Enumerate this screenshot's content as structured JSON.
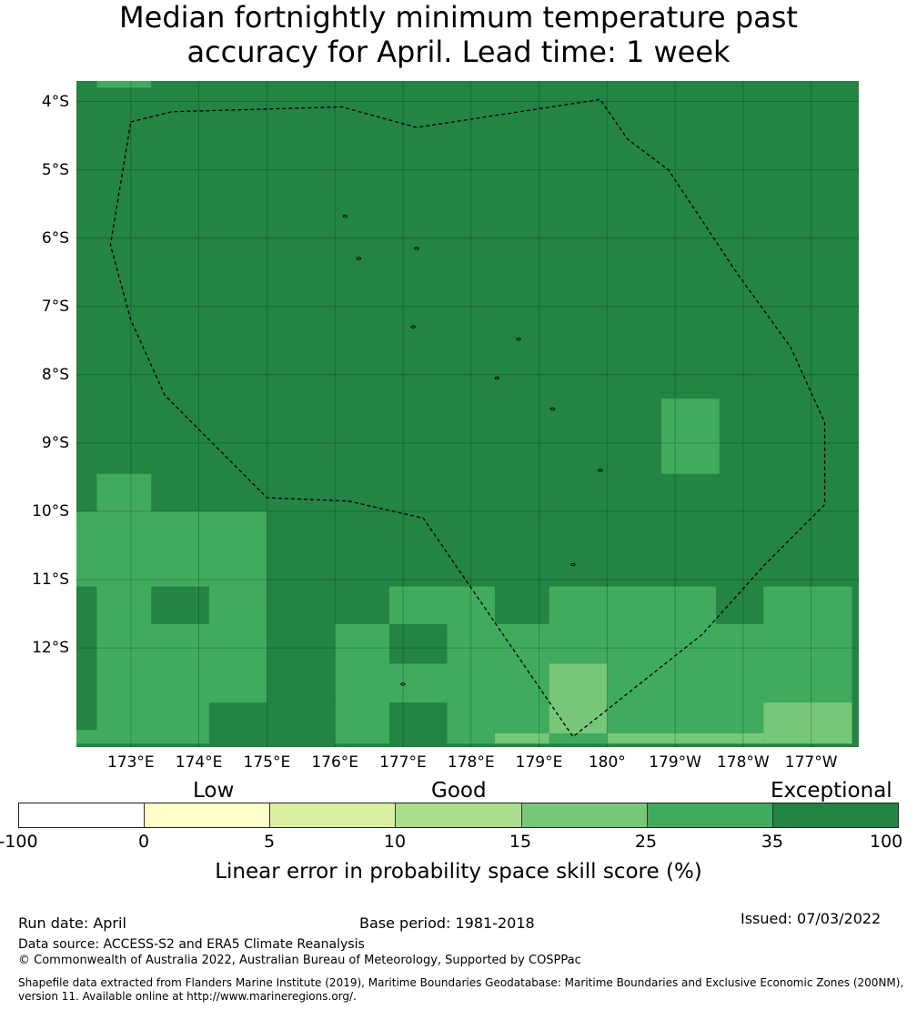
{
  "title_line1": "Median fortnightly minimum temperature past",
  "title_line2": "accuracy for April. Lead time: 1 week",
  "lat_labels": [
    "4°S",
    "5°S",
    "6°S",
    "7°S",
    "8°S",
    "9°S",
    "10°S",
    "11°S",
    "12°S"
  ],
  "lon_labels": [
    "173°E",
    "174°E",
    "175°E",
    "176°E",
    "177°E",
    "178°E",
    "179°E",
    "180°",
    "179°W",
    "178°W",
    "177°W"
  ],
  "categories": [
    "Low",
    "Good",
    "Exceptional"
  ],
  "colorbar": {
    "ticks": [
      "-100",
      "0",
      "5",
      "10",
      "15",
      "25",
      "35",
      "100"
    ],
    "colors": [
      "#ffffff",
      "#ffffcc",
      "#d9f0a3",
      "#addd8e",
      "#78c679",
      "#41ab5d",
      "#238443"
    ],
    "label": "Linear error in probability space skill score (%)"
  },
  "footer": {
    "run_date": "Run date: April",
    "base_period": "Base period: 1981-2018",
    "issued": "Issued: 07/03/2022",
    "data_source": "Data source: ACCESS-S2 and ERA5 Climate Reanalysis",
    "copyright": "© Commonwealth of Australia 2022, Australian Bureau of Meteorology, Supported by COSPPac",
    "shapefile_line1": "Shapefile data extracted from Flanders Marine Institute (2019), Maritime Boundaries Geodatabase: Maritime Boundaries and Exclusive Economic Zones (200NM),",
    "shapefile_line2": "version 11. Available online at http://www.marineregions.org/."
  },
  "map": {
    "extent": {
      "lon_min": 172.2,
      "lon_max": 183.7,
      "lat_max": -3.7,
      "lat_min": -13.45
    },
    "default_level": 6,
    "patches": [
      {
        "lon": [
          172.5,
          173.3
        ],
        "lat": [
          -3.8,
          -3.7
        ],
        "level": 5
      },
      {
        "lon": [
          172.2,
          175.0
        ],
        "lat": [
          -13.4,
          -10.0
        ],
        "level": 5
      },
      {
        "lon": [
          172.5,
          173.3
        ],
        "lat": [
          -10.0,
          -9.45
        ],
        "level": 5
      },
      {
        "lon": [
          173.3,
          174.15
        ],
        "lat": [
          -11.65,
          -11.1
        ],
        "level": 6
      },
      {
        "lon": [
          172.2,
          172.5
        ],
        "lat": [
          -13.2,
          -11.1
        ],
        "level": 6
      },
      {
        "lon": [
          174.15,
          175.0
        ],
        "lat": [
          -13.4,
          -12.8
        ],
        "level": 6
      },
      {
        "lon": [
          175.0,
          176.0
        ],
        "lat": [
          -13.4,
          -12.8
        ],
        "level": 6
      },
      {
        "lon": [
          176.0,
          176.8
        ],
        "lat": [
          -13.4,
          -11.65
        ],
        "level": 5
      },
      {
        "lon": [
          176.8,
          178.35
        ],
        "lat": [
          -11.65,
          -11.1
        ],
        "level": 5
      },
      {
        "lon": [
          176.8,
          177.65
        ],
        "lat": [
          -12.23,
          -11.65
        ],
        "level": 6
      },
      {
        "lon": [
          177.65,
          178.35
        ],
        "lat": [
          -12.8,
          -11.65
        ],
        "level": 5
      },
      {
        "lon": [
          176.8,
          177.65
        ],
        "lat": [
          -12.8,
          -12.23
        ],
        "level": 5
      },
      {
        "lon": [
          176.8,
          177.65
        ],
        "lat": [
          -13.4,
          -12.8
        ],
        "level": 6
      },
      {
        "lon": [
          177.65,
          178.35
        ],
        "lat": [
          -13.4,
          -12.8
        ],
        "level": 5
      },
      {
        "lon": [
          178.35,
          179.15
        ],
        "lat": [
          -12.8,
          -11.65
        ],
        "level": 5
      },
      {
        "lon": [
          178.35,
          179.15
        ],
        "lat": [
          -13.4,
          -12.8
        ],
        "level": 5
      },
      {
        "lon": [
          178.35,
          179.15
        ],
        "lat": [
          -13.4,
          -13.25
        ],
        "level": 4
      },
      {
        "lon": [
          179.15,
          182.3
        ],
        "lat": [
          -13.4,
          -11.1
        ],
        "level": 5
      },
      {
        "lon": [
          179.15,
          180.0
        ],
        "lat": [
          -13.25,
          -12.23
        ],
        "level": 4
      },
      {
        "lon": [
          180.0,
          182.3
        ],
        "lat": [
          -13.4,
          -13.25
        ],
        "level": 4
      },
      {
        "lon": [
          181.6,
          182.3
        ],
        "lat": [
          -11.65,
          -11.1
        ],
        "level": 6
      },
      {
        "lon": [
          182.3,
          183.6
        ],
        "lat": [
          -13.4,
          -11.1
        ],
        "level": 5
      },
      {
        "lon": [
          182.3,
          183.6
        ],
        "lat": [
          -13.4,
          -12.8
        ],
        "level": 4
      },
      {
        "lon": [
          180.8,
          181.65
        ],
        "lat": [
          -9.45,
          -8.35
        ],
        "level": 5
      }
    ],
    "eez_boundary": [
      [
        173.0,
        -4.3
      ],
      [
        173.6,
        -4.15
      ],
      [
        176.1,
        -4.08
      ],
      [
        177.2,
        -4.38
      ],
      [
        179.9,
        -3.97
      ],
      [
        180.3,
        -4.55
      ],
      [
        180.9,
        -5.0
      ],
      [
        181.3,
        -5.6
      ],
      [
        181.9,
        -6.5
      ],
      [
        182.7,
        -7.6
      ],
      [
        183.2,
        -8.7
      ],
      [
        183.2,
        -9.9
      ],
      [
        182.3,
        -10.8
      ],
      [
        181.4,
        -11.8
      ],
      [
        179.5,
        -13.3
      ],
      [
        177.3,
        -10.1
      ],
      [
        176.2,
        -9.85
      ],
      [
        175.0,
        -9.8
      ],
      [
        174.3,
        -9.1
      ],
      [
        173.5,
        -8.3
      ],
      [
        173.0,
        -7.2
      ],
      [
        172.7,
        -6.1
      ],
      [
        173.0,
        -4.3
      ]
    ],
    "islands": [
      [
        176.15,
        -5.68
      ],
      [
        176.35,
        -6.3
      ],
      [
        177.2,
        -6.15
      ],
      [
        177.15,
        -7.3
      ],
      [
        178.7,
        -7.48
      ],
      [
        178.38,
        -8.05
      ],
      [
        179.2,
        -8.5
      ],
      [
        179.9,
        -9.4
      ],
      [
        179.5,
        -10.78
      ],
      [
        177.0,
        -12.53
      ]
    ]
  }
}
